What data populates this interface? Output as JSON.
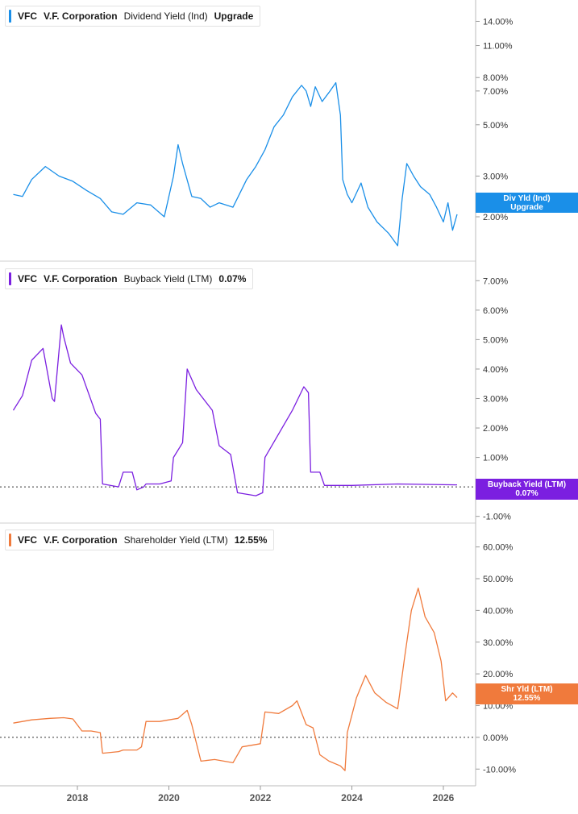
{
  "chart_data": [
    {
      "type": "line",
      "ticker": "VFC",
      "company": "V.F. Corporation",
      "metric": "Dividend Yield (Ind)",
      "current_value": "Upgrade",
      "flag_lines": [
        "Div Yld (Ind)",
        "Upgrade"
      ],
      "color": "#1a8fe8",
      "yscale": "log",
      "ylim": [
        1.35,
        16.5
      ],
      "yticks": [
        {
          "v": 14,
          "label": "14.00%"
        },
        {
          "v": 11,
          "label": "11.00%"
        },
        {
          "v": 8,
          "label": "8.00%"
        },
        {
          "v": 7,
          "label": "7.00%"
        },
        {
          "v": 5,
          "label": "5.00%"
        },
        {
          "v": 3,
          "label": "3.00%"
        },
        {
          "v": 2,
          "label": "2.00%"
        }
      ],
      "x": [
        2016.6,
        2016.8,
        2017.0,
        2017.3,
        2017.6,
        2017.9,
        2018.2,
        2018.5,
        2018.75,
        2019.0,
        2019.3,
        2019.6,
        2019.9,
        2020.1,
        2020.2,
        2020.3,
        2020.5,
        2020.7,
        2020.9,
        2021.1,
        2021.4,
        2021.7,
        2021.9,
        2022.1,
        2022.3,
        2022.5,
        2022.7,
        2022.9,
        2023.0,
        2023.1,
        2023.2,
        2023.35,
        2023.5,
        2023.65,
        2023.75,
        2023.8,
        2023.9,
        2024.0,
        2024.2,
        2024.35,
        2024.55,
        2024.8,
        2025.0,
        2025.1,
        2025.2,
        2025.35,
        2025.5,
        2025.7,
        2025.85,
        2026.0,
        2026.1,
        2026.2,
        2026.3
      ],
      "values": [
        2.5,
        2.45,
        2.9,
        3.3,
        3.0,
        2.85,
        2.6,
        2.4,
        2.1,
        2.05,
        2.3,
        2.25,
        2.0,
        3.0,
        4.1,
        3.4,
        2.45,
        2.4,
        2.2,
        2.3,
        2.2,
        2.9,
        3.3,
        3.9,
        4.9,
        5.5,
        6.6,
        7.4,
        7.0,
        6.0,
        7.3,
        6.3,
        6.9,
        7.6,
        5.5,
        2.9,
        2.5,
        2.3,
        2.8,
        2.2,
        1.9,
        1.7,
        1.5,
        2.4,
        3.4,
        3.0,
        2.7,
        2.5,
        2.2,
        1.9,
        2.3,
        1.75,
        2.05
      ]
    },
    {
      "type": "line",
      "ticker": "VFC",
      "company": "V.F. Corporation",
      "metric": "Buyback Yield (LTM)",
      "current_value": "0.07%",
      "flag_lines": [
        "Buyback Yield (LTM)",
        "0.07%"
      ],
      "color": "#7b1fe0",
      "yscale": "linear",
      "ylim": [
        -1.2,
        7.5
      ],
      "zero_line": true,
      "yticks": [
        {
          "v": 7,
          "label": "7.00%"
        },
        {
          "v": 6,
          "label": "6.00%"
        },
        {
          "v": 5,
          "label": "5.00%"
        },
        {
          "v": 4,
          "label": "4.00%"
        },
        {
          "v": 3,
          "label": "3.00%"
        },
        {
          "v": 2,
          "label": "2.00%"
        },
        {
          "v": 1,
          "label": "1.00%"
        },
        {
          "v": -1,
          "label": "-1.00%"
        }
      ],
      "x": [
        2016.6,
        2016.8,
        2017.0,
        2017.25,
        2017.45,
        2017.5,
        2017.65,
        2017.7,
        2017.85,
        2018.1,
        2018.4,
        2018.5,
        2018.55,
        2018.9,
        2019.0,
        2019.2,
        2019.3,
        2019.45,
        2019.5,
        2019.8,
        2020.05,
        2020.1,
        2020.3,
        2020.4,
        2020.6,
        2020.95,
        2021.1,
        2021.35,
        2021.5,
        2021.9,
        2022.05,
        2022.1,
        2022.4,
        2022.7,
        2022.95,
        2023.05,
        2023.1,
        2023.3,
        2023.4,
        2024.0,
        2025.0,
        2026.3
      ],
      "values": [
        2.6,
        3.1,
        4.3,
        4.7,
        3.0,
        2.9,
        5.5,
        5.1,
        4.2,
        3.8,
        2.5,
        2.3,
        0.1,
        0.0,
        0.5,
        0.5,
        -0.1,
        0.0,
        0.1,
        0.1,
        0.2,
        1.0,
        1.5,
        4.0,
        3.3,
        2.6,
        1.4,
        1.1,
        -0.2,
        -0.3,
        -0.2,
        1.0,
        1.8,
        2.6,
        3.4,
        3.2,
        0.5,
        0.5,
        0.05,
        0.05,
        0.1,
        0.07
      ]
    },
    {
      "type": "line",
      "ticker": "VFC",
      "company": "V.F. Corporation",
      "metric": "Shareholder Yield (LTM)",
      "current_value": "12.55%",
      "flag_lines": [
        "Shr Yld (LTM)",
        "12.55%"
      ],
      "color": "#f07a3c",
      "yscale": "linear",
      "ylim": [
        -14,
        66
      ],
      "zero_line": true,
      "yticks": [
        {
          "v": 60,
          "label": "60.00%"
        },
        {
          "v": 50,
          "label": "50.00%"
        },
        {
          "v": 40,
          "label": "40.00%"
        },
        {
          "v": 30,
          "label": "30.00%"
        },
        {
          "v": 20,
          "label": "20.00%"
        },
        {
          "v": 10,
          "label": "10.00%"
        },
        {
          "v": 0,
          "label": "0.00%"
        },
        {
          "v": -10,
          "label": "-10.00%"
        }
      ],
      "x": [
        2016.6,
        2017.0,
        2017.4,
        2017.7,
        2017.9,
        2018.1,
        2018.3,
        2018.5,
        2018.55,
        2018.9,
        2019.0,
        2019.3,
        2019.4,
        2019.5,
        2019.8,
        2020.0,
        2020.2,
        2020.4,
        2020.5,
        2020.7,
        2021.0,
        2021.2,
        2021.4,
        2021.6,
        2022.0,
        2022.1,
        2022.4,
        2022.7,
        2022.8,
        2023.0,
        2023.15,
        2023.3,
        2023.5,
        2023.75,
        2023.85,
        2023.9,
        2024.1,
        2024.3,
        2024.5,
        2024.75,
        2025.0,
        2025.15,
        2025.3,
        2025.45,
        2025.6,
        2025.8,
        2025.95,
        2026.05,
        2026.2,
        2026.3
      ],
      "values": [
        4.5,
        5.5,
        6.0,
        6.2,
        5.8,
        2.0,
        2.0,
        1.5,
        -5.0,
        -4.5,
        -4.0,
        -4.0,
        -3.0,
        5.0,
        5.0,
        5.5,
        6.0,
        8.5,
        4.0,
        -7.5,
        -7.0,
        -7.5,
        -8.0,
        -3.0,
        -2.0,
        8.0,
        7.5,
        10.0,
        11.5,
        4.0,
        3.0,
        -5.5,
        -7.5,
        -9.0,
        -10.5,
        1.5,
        12.5,
        19.5,
        14.0,
        11.0,
        9.0,
        25.0,
        40.0,
        47.0,
        38.0,
        33.0,
        24.0,
        11.5,
        14.0,
        12.55
      ]
    }
  ],
  "x_axis": {
    "ticks": [
      {
        "v": 2018,
        "label": "2018"
      },
      {
        "v": 2020,
        "label": "2020"
      },
      {
        "v": 2022,
        "label": "2022"
      },
      {
        "v": 2024,
        "label": "2024"
      },
      {
        "v": 2026,
        "label": "2026"
      }
    ]
  }
}
